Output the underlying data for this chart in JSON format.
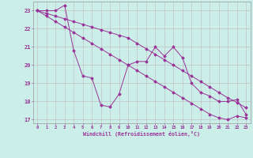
{
  "xlabel": "Windchill (Refroidissement éolien,°C)",
  "background_color": "#cceee8",
  "grid_color": "#bbbbbb",
  "line_color": "#993399",
  "xlim": [
    -0.5,
    23.5
  ],
  "ylim": [
    16.8,
    23.5
  ],
  "yticks": [
    17,
    18,
    19,
    20,
    21,
    22,
    23
  ],
  "xticks": [
    0,
    1,
    2,
    3,
    4,
    5,
    6,
    7,
    8,
    9,
    10,
    11,
    12,
    13,
    14,
    15,
    16,
    17,
    18,
    19,
    20,
    21,
    22,
    23
  ],
  "series1_x": [
    0,
    1,
    2,
    3,
    4,
    5,
    6,
    7,
    8,
    9,
    10,
    11,
    12,
    13,
    14,
    15,
    16,
    17,
    18,
    19,
    20,
    21,
    22,
    23
  ],
  "series1_y": [
    23.0,
    23.0,
    23.0,
    23.3,
    20.8,
    19.4,
    19.3,
    17.8,
    17.7,
    18.4,
    20.0,
    20.2,
    20.2,
    21.0,
    20.5,
    21.0,
    20.4,
    19.0,
    18.5,
    18.3,
    18.0,
    18.0,
    18.1,
    17.3
  ],
  "series2_x": [
    0,
    1,
    2,
    3,
    4,
    5,
    6,
    7,
    8,
    9,
    10,
    11,
    12,
    13,
    14,
    15,
    16,
    17,
    18,
    19,
    20,
    21,
    22,
    23
  ],
  "series2_y": [
    23.0,
    22.85,
    22.7,
    22.55,
    22.4,
    22.25,
    22.1,
    21.95,
    21.8,
    21.65,
    21.5,
    21.2,
    20.9,
    20.6,
    20.3,
    20.0,
    19.7,
    19.4,
    19.1,
    18.8,
    18.5,
    18.2,
    17.95,
    17.65
  ],
  "series3_x": [
    0,
    1,
    2,
    3,
    4,
    5,
    6,
    7,
    8,
    9,
    10,
    11,
    12,
    13,
    14,
    15,
    16,
    17,
    18,
    19,
    20,
    21,
    22,
    23
  ],
  "series3_y": [
    23.0,
    22.7,
    22.4,
    22.1,
    21.8,
    21.5,
    21.2,
    20.9,
    20.6,
    20.3,
    20.0,
    19.7,
    19.4,
    19.1,
    18.8,
    18.5,
    18.2,
    17.9,
    17.6,
    17.3,
    17.1,
    17.0,
    17.2,
    17.1
  ]
}
